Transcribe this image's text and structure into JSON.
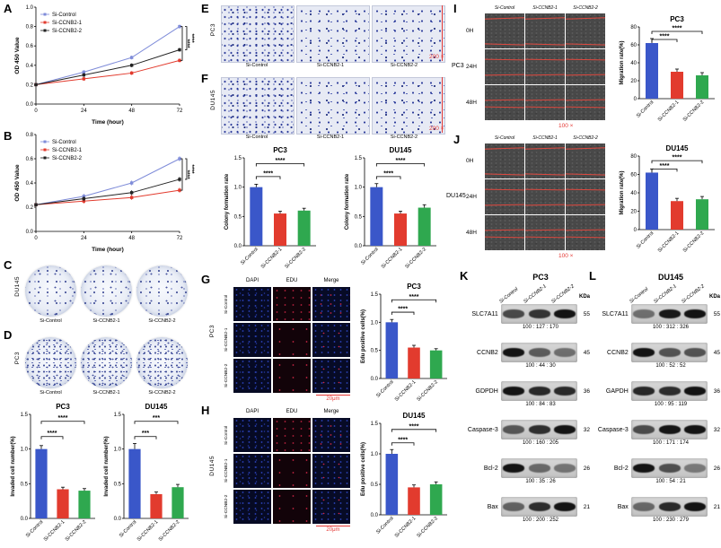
{
  "groups": [
    "Si-Control",
    "Si-CCNB2-1",
    "Si-CCNB2-2"
  ],
  "group_colors": [
    "#3a57c9",
    "#e23b2e",
    "#2fa84f"
  ],
  "letters": {
    "A": "A",
    "B": "B",
    "C": "C",
    "D": "D",
    "E": "E",
    "F": "F",
    "G": "G",
    "H": "H",
    "I": "I",
    "J": "J",
    "K": "K",
    "L": "L"
  },
  "labels": {
    "pc3": "PC3",
    "du145": "DU145",
    "dapi": "DAPI",
    "edu": "EDU",
    "merge": "Merge",
    "mag200": "200 ×",
    "mag100": "100 ×",
    "scale20": "20μm",
    "time_0": "0H",
    "time_24": "24H",
    "time_48": "48H"
  },
  "chart_data": [
    {
      "id": "A",
      "type": "line",
      "title": "",
      "xlabel": "Time (hour)",
      "ylabel": "OD 450 Value",
      "x": [
        0,
        24,
        48,
        72
      ],
      "ylim": [
        0,
        1.0
      ],
      "yticks": [
        0,
        0.2,
        0.4,
        0.6,
        0.8,
        1.0
      ],
      "err": 0.02,
      "legend_position": "top-left",
      "grid": false,
      "series": [
        {
          "name": "Si-Control",
          "color": "#7f8cd9",
          "values": [
            0.2,
            0.33,
            0.48,
            0.8
          ]
        },
        {
          "name": "Si-CCNB2-1",
          "color": "#e23b2e",
          "values": [
            0.2,
            0.26,
            0.32,
            0.45
          ]
        },
        {
          "name": "Si-CCNB2-2",
          "color": "#222222",
          "values": [
            0.2,
            0.3,
            0.4,
            0.56
          ]
        }
      ],
      "sig": [
        {
          "a": 0,
          "b": 1,
          "label": "****"
        },
        {
          "a": 0,
          "b": 2,
          "label": "****"
        }
      ]
    },
    {
      "id": "B",
      "type": "line",
      "title": "",
      "xlabel": "Time (hour)",
      "ylabel": "OD 450 Value",
      "x": [
        0,
        24,
        48,
        72
      ],
      "ylim": [
        0,
        0.8
      ],
      "yticks": [
        0,
        0.2,
        0.4,
        0.6,
        0.8
      ],
      "err": 0.02,
      "legend_position": "top-left",
      "grid": false,
      "series": [
        {
          "name": "Si-Control",
          "color": "#7f8cd9",
          "values": [
            0.22,
            0.29,
            0.4,
            0.6
          ]
        },
        {
          "name": "Si-CCNB2-1",
          "color": "#e23b2e",
          "values": [
            0.22,
            0.25,
            0.28,
            0.34
          ]
        },
        {
          "name": "Si-CCNB2-2",
          "color": "#222222",
          "values": [
            0.22,
            0.27,
            0.32,
            0.43
          ]
        }
      ],
      "sig": [
        {
          "a": 0,
          "b": 1,
          "label": "****"
        },
        {
          "a": 0,
          "b": 2,
          "label": "****"
        }
      ]
    },
    {
      "id": "D_PC3",
      "type": "bar",
      "title": "PC3",
      "ylabel": "Invaded cell number(%)",
      "categories": [
        "Si-Control",
        "Si-CCNB2-1",
        "Si-CCNB2-2"
      ],
      "values": [
        1.0,
        0.42,
        0.4
      ],
      "err": [
        0.05,
        0.03,
        0.03
      ],
      "ylim": [
        0,
        1.5
      ],
      "yticks": [
        0,
        0.5,
        1.0,
        1.5
      ],
      "sig": [
        {
          "a": 0,
          "b": 1,
          "label": "****",
          "h": 1.18
        },
        {
          "a": 0,
          "b": 2,
          "label": "****",
          "h": 1.4
        }
      ]
    },
    {
      "id": "D_DU145",
      "type": "bar",
      "title": "DU145",
      "ylabel": "Invaded cell number(%)",
      "categories": [
        "Si-Control",
        "Si-CCNB2-1",
        "Si-CCNB2-2"
      ],
      "values": [
        1.0,
        0.35,
        0.45
      ],
      "err": [
        0.08,
        0.03,
        0.04
      ],
      "ylim": [
        0,
        1.5
      ],
      "yticks": [
        0,
        0.5,
        1.0,
        1.5
      ],
      "sig": [
        {
          "a": 0,
          "b": 1,
          "label": "***",
          "h": 1.18
        },
        {
          "a": 0,
          "b": 2,
          "label": "***",
          "h": 1.4
        }
      ]
    },
    {
      "id": "F_PC3",
      "type": "bar",
      "title": "PC3",
      "ylabel": "Colony formation rate",
      "categories": [
        "Si-Control",
        "Si-CCNB2-1",
        "Si-CCNB2-2"
      ],
      "values": [
        1.0,
        0.55,
        0.6
      ],
      "err": [
        0.05,
        0.04,
        0.04
      ],
      "ylim": [
        0,
        1.5
      ],
      "yticks": [
        0,
        0.5,
        1.0,
        1.5
      ],
      "sig": [
        {
          "a": 0,
          "b": 1,
          "label": "****",
          "h": 1.18
        },
        {
          "a": 0,
          "b": 2,
          "label": "****",
          "h": 1.4
        }
      ]
    },
    {
      "id": "F_DU145",
      "type": "bar",
      "title": "DU145",
      "ylabel": "Colony formation rate",
      "categories": [
        "Si-Control",
        "Si-CCNB2-1",
        "Si-CCNB2-2"
      ],
      "values": [
        1.0,
        0.55,
        0.65
      ],
      "err": [
        0.06,
        0.04,
        0.05
      ],
      "ylim": [
        0,
        1.5
      ],
      "yticks": [
        0,
        0.5,
        1.0,
        1.5
      ],
      "sig": [
        {
          "a": 0,
          "b": 1,
          "label": "****",
          "h": 1.18
        },
        {
          "a": 0,
          "b": 2,
          "label": "****",
          "h": 1.4
        }
      ]
    },
    {
      "id": "G_PC3",
      "type": "bar",
      "title": "PC3",
      "ylabel": "Edu positive cells(%)",
      "categories": [
        "Si-Control",
        "Si-CCNB2-1",
        "Si-CCNB2-2"
      ],
      "values": [
        1.0,
        0.55,
        0.5
      ],
      "err": [
        0.05,
        0.04,
        0.03
      ],
      "ylim": [
        0,
        1.5
      ],
      "yticks": [
        0,
        0.5,
        1.0,
        1.5
      ],
      "sig": [
        {
          "a": 0,
          "b": 1,
          "label": "****",
          "h": 1.18
        },
        {
          "a": 0,
          "b": 2,
          "label": "****",
          "h": 1.4
        }
      ]
    },
    {
      "id": "H_DU145",
      "type": "bar",
      "title": "DU145",
      "ylabel": "Edu positive cells(%)",
      "categories": [
        "Si-Control",
        "Si-CCNB2-1",
        "Si-CCNB2-2"
      ],
      "values": [
        1.0,
        0.45,
        0.5
      ],
      "err": [
        0.07,
        0.04,
        0.04
      ],
      "ylim": [
        0,
        1.5
      ],
      "yticks": [
        0,
        0.5,
        1.0,
        1.5
      ],
      "sig": [
        {
          "a": 0,
          "b": 1,
          "label": "****",
          "h": 1.18
        },
        {
          "a": 0,
          "b": 2,
          "label": "****",
          "h": 1.4
        }
      ]
    },
    {
      "id": "I_PC3",
      "type": "bar",
      "title": "PC3",
      "ylabel": "Migration rate(%)",
      "categories": [
        "Si-Control",
        "Si-CCNB2-1",
        "Si-CCNB2-2"
      ],
      "values": [
        62,
        30,
        26
      ],
      "err": [
        5,
        3,
        3
      ],
      "ylim": [
        0,
        80
      ],
      "yticks": [
        0,
        20,
        40,
        60,
        80
      ],
      "sig": [
        {
          "a": 0,
          "b": 1,
          "label": "****",
          "h": 66
        },
        {
          "a": 0,
          "b": 2,
          "label": "****",
          "h": 75
        }
      ]
    },
    {
      "id": "J_DU145",
      "type": "bar",
      "title": "DU145",
      "ylabel": "Migration rate(%)",
      "categories": [
        "Si-Control",
        "Si-CCNB2-1",
        "Si-CCNB2-2"
      ],
      "values": [
        62,
        31,
        33
      ],
      "err": [
        4,
        3,
        3
      ],
      "ylim": [
        0,
        80
      ],
      "yticks": [
        0,
        20,
        40,
        60,
        80
      ],
      "sig": [
        {
          "a": 0,
          "b": 1,
          "label": "****",
          "h": 66
        },
        {
          "a": 0,
          "b": 2,
          "label": "****",
          "h": 75
        }
      ]
    }
  ],
  "panels": {
    "K": {
      "title": "PC3",
      "kda_header": "KDa",
      "lanes": [
        "Si-Control",
        "Si-CCNB2-1",
        "Si-CCNB2-2"
      ],
      "rows": [
        {
          "name": "SLC7A11",
          "kda": 55,
          "values": [
            100,
            127,
            170
          ]
        },
        {
          "name": "CCNB2",
          "kda": 45,
          "values": [
            100,
            44,
            30
          ]
        },
        {
          "name": "GDPDH",
          "kda": 36,
          "values": [
            100,
            84,
            83
          ]
        },
        {
          "name": "Caspase-3",
          "kda": 32,
          "values": [
            100,
            160,
            205
          ]
        },
        {
          "name": "Bcl-2",
          "kda": 26,
          "values": [
            100,
            35,
            26
          ]
        },
        {
          "name": "Bax",
          "kda": 21,
          "values": [
            100,
            200,
            252
          ]
        }
      ]
    },
    "L": {
      "title": "DU145",
      "kda_header": "KDa",
      "lanes": [
        "Si-Control",
        "Si-CCNB2-1",
        "Si-CCNB2-2"
      ],
      "rows": [
        {
          "name": "SLC7A11",
          "kda": 55,
          "values": [
            100,
            312,
            326
          ]
        },
        {
          "name": "CCNB2",
          "kda": 45,
          "values": [
            100,
            52,
            52
          ]
        },
        {
          "name": "GAPDH",
          "kda": 36,
          "values": [
            100,
            95,
            119
          ]
        },
        {
          "name": "Caspase-3",
          "kda": 32,
          "values": [
            100,
            171,
            174
          ]
        },
        {
          "name": "Bcl-2",
          "kda": 26,
          "values": [
            100,
            54,
            21
          ]
        },
        {
          "name": "Bax",
          "kda": 21,
          "values": [
            100,
            230,
            279
          ]
        }
      ]
    }
  }
}
